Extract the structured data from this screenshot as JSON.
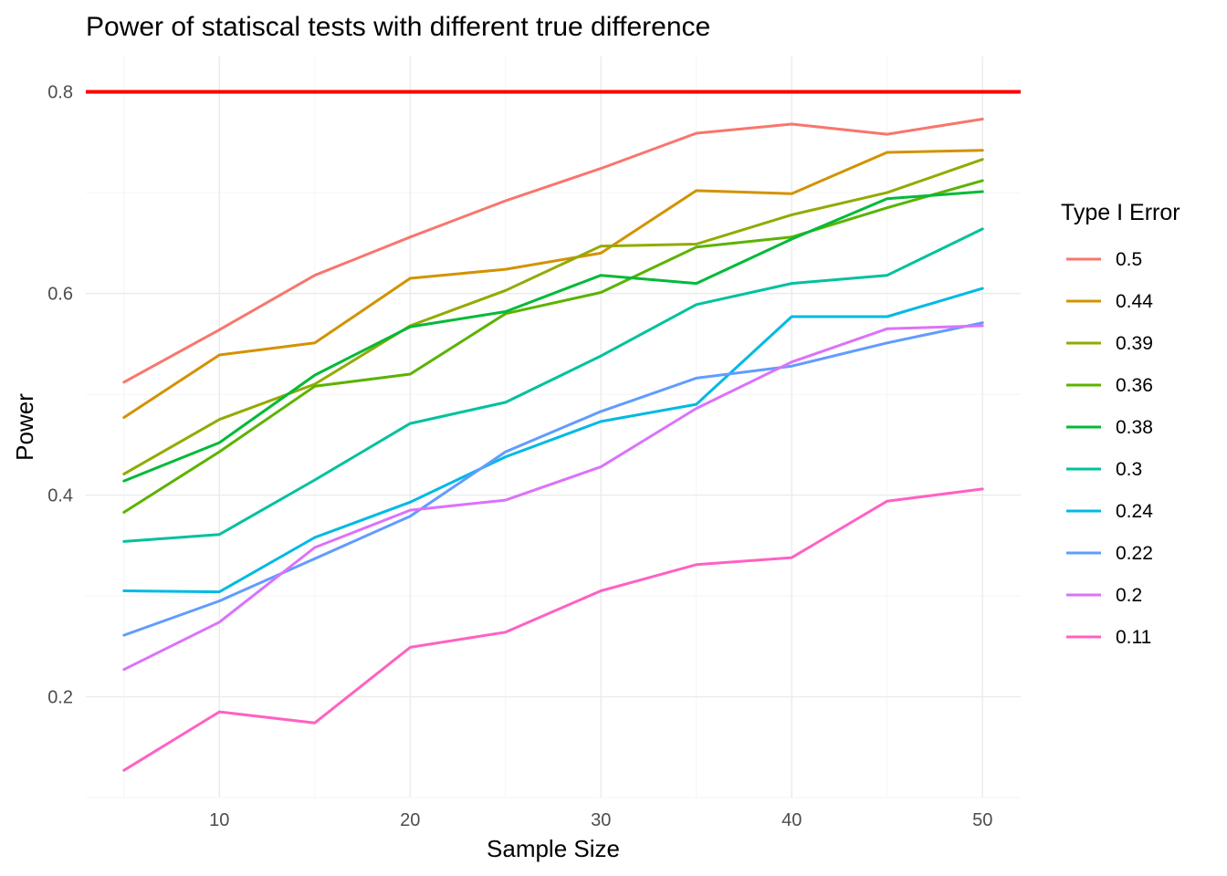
{
  "chart_data": {
    "type": "line",
    "title": "Power of statiscal tests with different true difference",
    "xlabel": "Sample Size",
    "ylabel": "Power",
    "xlim": [
      3,
      52
    ],
    "ylim": [
      0.1,
      0.835
    ],
    "x_ticks": [
      10,
      20,
      30,
      40,
      50
    ],
    "y_ticks": [
      0.2,
      0.4,
      0.6,
      0.8
    ],
    "grid": true,
    "legend_title": "Type I Error",
    "legend_position": "right",
    "reference_line": {
      "y": 0.8,
      "color": "#ff0000"
    },
    "x": [
      5,
      10,
      15,
      20,
      25,
      30,
      35,
      40,
      45,
      50
    ],
    "series": [
      {
        "name": "0.5",
        "color": "#F8766D",
        "values": [
          0.512,
          0.564,
          0.618,
          0.656,
          0.692,
          0.724,
          0.759,
          0.768,
          0.758,
          0.773
        ]
      },
      {
        "name": "0.44",
        "color": "#D39200",
        "values": [
          0.477,
          0.539,
          0.551,
          0.615,
          0.624,
          0.64,
          0.702,
          0.699,
          0.74,
          0.742
        ]
      },
      {
        "name": "0.39",
        "color": "#93AA00",
        "values": [
          0.421,
          0.475,
          0.51,
          0.568,
          0.603,
          0.647,
          0.649,
          0.678,
          0.7,
          0.733
        ]
      },
      {
        "name": "0.36",
        "color": "#5BB300",
        "values": [
          0.383,
          0.443,
          0.508,
          0.52,
          0.58,
          0.601,
          0.646,
          0.656,
          0.685,
          0.712
        ]
      },
      {
        "name": "0.38",
        "color": "#00BA38",
        "values": [
          0.414,
          0.452,
          0.519,
          0.567,
          0.582,
          0.618,
          0.61,
          0.654,
          0.694,
          0.701
        ]
      },
      {
        "name": "0.3",
        "color": "#00C19F",
        "values": [
          0.354,
          0.361,
          0.415,
          0.471,
          0.492,
          0.538,
          0.589,
          0.61,
          0.618,
          0.664
        ]
      },
      {
        "name": "0.24",
        "color": "#00B9E3",
        "values": [
          0.305,
          0.304,
          0.358,
          0.393,
          0.438,
          0.473,
          0.49,
          0.577,
          0.577,
          0.605
        ]
      },
      {
        "name": "0.22",
        "color": "#619CFF",
        "values": [
          0.261,
          0.295,
          0.337,
          0.379,
          0.443,
          0.483,
          0.516,
          0.528,
          0.551,
          0.571
        ]
      },
      {
        "name": "0.2",
        "color": "#DB72FB",
        "values": [
          0.227,
          0.274,
          0.348,
          0.385,
          0.395,
          0.428,
          0.486,
          0.532,
          0.565,
          0.568
        ]
      },
      {
        "name": "0.11",
        "color": "#FF61C3",
        "values": [
          0.127,
          0.185,
          0.174,
          0.249,
          0.264,
          0.305,
          0.331,
          0.338,
          0.394,
          0.406
        ]
      }
    ]
  }
}
